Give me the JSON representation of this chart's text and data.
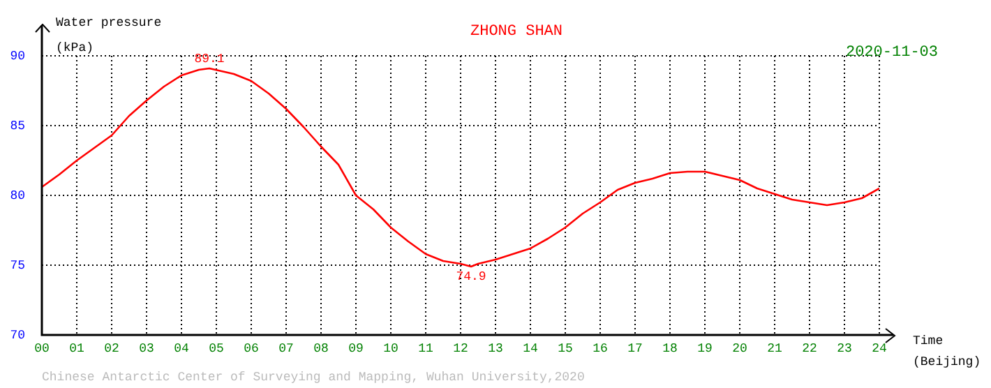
{
  "chart_data": {
    "type": "line",
    "title": "ZHONG SHAN",
    "subtitle": "2020-11-03",
    "ylabel": "Water pressure (kPa)",
    "xlabel": "Time (Beijing)",
    "x": [
      0,
      0.5,
      1,
      1.5,
      2,
      2.5,
      3,
      3.5,
      4,
      4.5,
      4.8,
      5.5,
      6,
      6.5,
      7,
      7.5,
      8,
      8.5,
      9,
      9.5,
      10,
      10.5,
      11,
      11.5,
      12,
      12.3,
      12.5,
      13,
      13.5,
      14,
      14.5,
      15,
      15.5,
      16,
      16.5,
      17,
      17.5,
      18,
      18.5,
      19,
      19.5,
      20,
      20.5,
      21,
      21.5,
      22,
      22.5,
      23,
      23.5,
      24
    ],
    "series": [
      {
        "color": "#ff0000",
        "values": [
          80.6,
          81.5,
          82.5,
          83.4,
          84.3,
          85.7,
          86.8,
          87.8,
          88.6,
          89.0,
          89.1,
          88.7,
          88.2,
          87.3,
          86.2,
          84.9,
          83.5,
          82.2,
          80.0,
          79.0,
          77.7,
          76.7,
          75.8,
          75.3,
          75.1,
          74.9,
          75.1,
          75.4,
          75.8,
          76.2,
          76.9,
          77.7,
          78.7,
          79.5,
          80.4,
          80.9,
          81.2,
          81.6,
          81.7,
          81.7,
          81.4,
          81.1,
          80.5,
          80.1,
          79.7,
          79.5,
          79.3,
          79.5,
          79.8,
          80.5
        ]
      }
    ],
    "annotations": [
      {
        "text": "89.1",
        "x": 4.8,
        "y": 89.1
      },
      {
        "text": "74.9",
        "x": 12.3,
        "y": 74.9
      },
      "Chinese Antarctic Center of Surveying and Mapping, Wuhan University,2020"
    ],
    "xlim": [
      0,
      24
    ],
    "ylim": [
      70,
      90
    ],
    "xticks": [
      {
        "value": 0,
        "label": "00"
      },
      {
        "value": 1,
        "label": "01"
      },
      {
        "value": 2,
        "label": "02"
      },
      {
        "value": 3,
        "label": "03"
      },
      {
        "value": 4,
        "label": "04"
      },
      {
        "value": 5,
        "label": "05"
      },
      {
        "value": 6,
        "label": "06"
      },
      {
        "value": 7,
        "label": "07"
      },
      {
        "value": 8,
        "label": "08"
      },
      {
        "value": 9,
        "label": "09"
      },
      {
        "value": 10,
        "label": "10"
      },
      {
        "value": 11,
        "label": "11"
      },
      {
        "value": 12,
        "label": "12"
      },
      {
        "value": 13,
        "label": "13"
      },
      {
        "value": 14,
        "label": "14"
      },
      {
        "value": 15,
        "label": "15"
      },
      {
        "value": 16,
        "label": "16"
      },
      {
        "value": 17,
        "label": "17"
      },
      {
        "value": 18,
        "label": "18"
      },
      {
        "value": 19,
        "label": "19"
      },
      {
        "value": 20,
        "label": "20"
      },
      {
        "value": 21,
        "label": "21"
      },
      {
        "value": 22,
        "label": "22"
      },
      {
        "value": 23,
        "label": "23"
      },
      {
        "value": 24,
        "label": "24"
      }
    ],
    "yticks": [
      70,
      75,
      80,
      85,
      90
    ],
    "grid": true,
    "legend": false,
    "marker": "none",
    "line_style": "solid"
  }
}
